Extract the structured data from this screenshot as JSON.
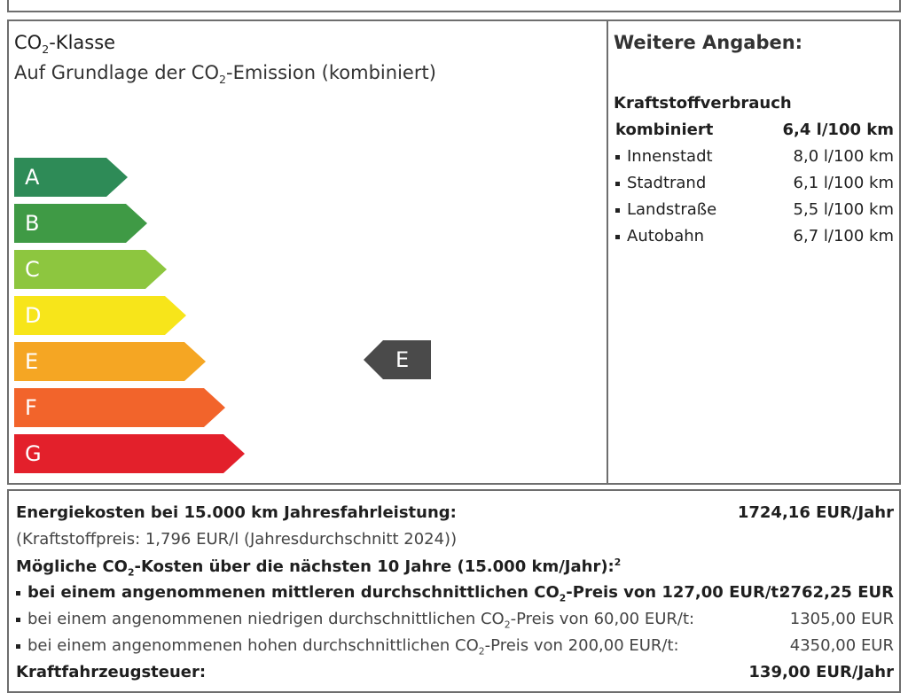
{
  "co2": {
    "title_prefix": "CO",
    "title_sub": "2",
    "title_suffix": "-Klasse",
    "subtitle_prefix": "Auf Grundlage der CO",
    "subtitle_sub": "2",
    "subtitle_suffix": "-Emission (kombiniert)",
    "bands": [
      {
        "label": "A",
        "color": "#2e8b57"
      },
      {
        "label": "B",
        "color": "#3f9a45"
      },
      {
        "label": "C",
        "color": "#8dc63f"
      },
      {
        "label": "D",
        "color": "#f7e51a"
      },
      {
        "label": "E",
        "color": "#f5a623"
      },
      {
        "label": "F",
        "color": "#f2642b"
      },
      {
        "label": "G",
        "color": "#e3202b"
      }
    ],
    "current_class": "E",
    "marker_color": "#4a4a4a"
  },
  "info": {
    "title": "Weitere Angaben:",
    "section": "Kraftstoffverbrauch",
    "rows": [
      {
        "label": "kombiniert",
        "value": "6,4 l/100 km"
      },
      {
        "label": "Innenstadt",
        "value": "8,0 l/100 km"
      },
      {
        "label": "Stadtrand",
        "value": "6,1 l/100 km"
      },
      {
        "label": "Landstraße",
        "value": "5,5 l/100 km"
      },
      {
        "label": "Autobahn",
        "value": "6,7 l/100 km"
      }
    ]
  },
  "costs": {
    "energy_label": "Energiekosten bei 15.000 km Jahresfahrleistung:",
    "energy_value": "1724,16 EUR/Jahr",
    "fuel_price": "(Kraftstoffpreis: 1,796 EUR/l (Jahresdurchschnitt 2024))",
    "co2_heading_prefix": "Mögliche CO",
    "co2_heading_sub": "2",
    "co2_heading_suffix": "-Kosten über die nächsten 10 Jahre (15.000 km/Jahr):",
    "co2_heading_sup": "2",
    "mid_prefix": "bei einem angenommenen mittleren durchschnittlichen CO",
    "mid_sub": "2",
    "mid_suffix": "-Preis von 127,00 EUR/t:",
    "mid_value": "2762,25 EUR",
    "low_prefix": "bei einem angenommenen niedrigen durchschnittlichen CO",
    "low_sub": "2",
    "low_suffix": "-Preis von 60,00 EUR/t:",
    "low_value": "1305,00 EUR",
    "high_prefix": "bei einem angenommenen hohen durchschnittlichen CO",
    "high_sub": "2",
    "high_suffix": "-Preis von 200,00 EUR/t:",
    "high_value": "4350,00 EUR",
    "tax_label": "Kraftfahrzeugsteuer:",
    "tax_value": "139,00 EUR/Jahr"
  }
}
